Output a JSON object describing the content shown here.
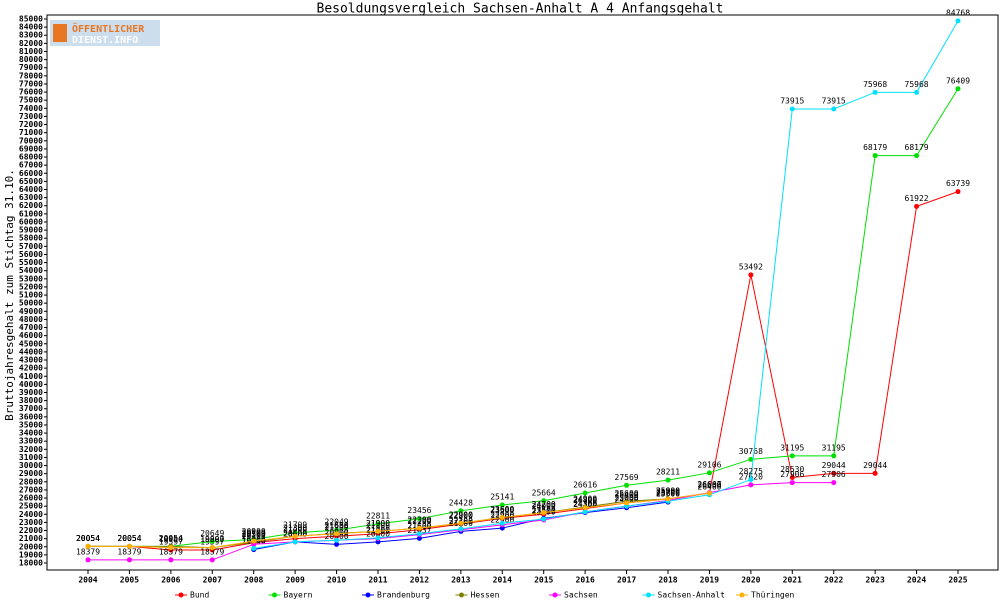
{
  "logo": {
    "line1": "ÖFFENTLICHER",
    "line2": "DIENST.INFO"
  },
  "chart_data": {
    "type": "line",
    "title": "Besoldungsvergleich Sachsen-Anhalt A 4 Anfangsgehalt",
    "y_label": "Bruttojahresgehalt zum Stichtag 31.10.",
    "categories": [
      "2004",
      "2005",
      "2006",
      "2007",
      "2008",
      "2009",
      "2010",
      "2011",
      "2012",
      "2013",
      "2014",
      "2015",
      "2016",
      "2017",
      "2018",
      "2019",
      "2020",
      "2021",
      "2022",
      "2023",
      "2024",
      "2025"
    ],
    "ylim": [
      18000,
      85000
    ],
    "yticks": [
      18000,
      19000,
      20000,
      21000,
      22000,
      23000,
      24000,
      25000,
      26000,
      27000,
      28000,
      29000,
      30000,
      31000,
      32000,
      33000,
      34000,
      35000,
      36000,
      37000,
      38000,
      39000,
      40000,
      41000,
      42000,
      43000,
      44000,
      45000,
      46000,
      47000,
      48000,
      49000,
      50000,
      51000,
      52000,
      53000,
      54000,
      55000,
      56000,
      57000,
      58000,
      59000,
      60000,
      61000,
      62000,
      63000,
      64000,
      65000,
      66000,
      67000,
      68000,
      69000,
      70000,
      71000,
      72000,
      73000,
      74000,
      75000,
      76000,
      77000,
      78000,
      79000,
      80000,
      81000,
      82000,
      83000,
      84000,
      85000
    ],
    "series": [
      {
        "name": "Bund",
        "color": "#ff0000",
        "values": [
          20054,
          20054,
          19597,
          19597,
          20500,
          21000,
          21300,
          21600,
          22100,
          22800,
          23500,
          24000,
          24700,
          25400,
          25900,
          26600,
          53492,
          28530,
          29044,
          29044,
          61922,
          63739
        ]
      },
      {
        "name": "Bayern",
        "color": "#00e000",
        "values": [
          20054,
          20054,
          20054,
          20649,
          20900,
          21709,
          22049,
          22811,
          23456,
          24428,
          25141,
          25664,
          26616,
          27569,
          28211,
          29106,
          30768,
          31195,
          31195,
          68179,
          68179,
          76409
        ]
      },
      {
        "name": "Brandenburg",
        "color": "#0000ff",
        "values": [
          null,
          null,
          null,
          null,
          19650,
          20600,
          20300,
          20600,
          21037,
          21900,
          22300,
          23500,
          24200,
          24800,
          25500,
          null,
          null,
          null,
          null,
          null,
          null,
          null
        ]
      },
      {
        "name": "Hessen",
        "color": "#808000",
        "values": [
          20054,
          20054,
          20054,
          19897,
          20560,
          21300,
          21650,
          21900,
          22300,
          22900,
          23600,
          24200,
          24900,
          25600,
          25900,
          null,
          null,
          null,
          null,
          null,
          null,
          null
        ]
      },
      {
        "name": "Sachsen",
        "color": "#ff00ff",
        "values": [
          18379,
          18379,
          18379,
          18379,
          20300,
          20600,
          20800,
          21000,
          21500,
          22100,
          22700,
          23300,
          24300,
          25000,
          25700,
          26667,
          27620,
          27906,
          27906,
          null,
          null,
          null
        ]
      },
      {
        "name": "Sachsen-Anhalt",
        "color": "#00e0ff",
        "values": [
          null,
          null,
          null,
          null,
          19800,
          20600,
          20800,
          21100,
          21600,
          22200,
          22900,
          23400,
          24300,
          25000,
          25600,
          26400,
          28275,
          73915,
          73915,
          75968,
          75968,
          84768
        ]
      },
      {
        "name": "Thüringen",
        "color": "#ffb000",
        "values": [
          20054,
          20054,
          19900,
          19900,
          20700,
          21300,
          21600,
          21900,
          22300,
          22900,
          23600,
          24200,
          24800,
          25400,
          25900,
          26600,
          null,
          null,
          null,
          null,
          null,
          null
        ]
      }
    ]
  }
}
